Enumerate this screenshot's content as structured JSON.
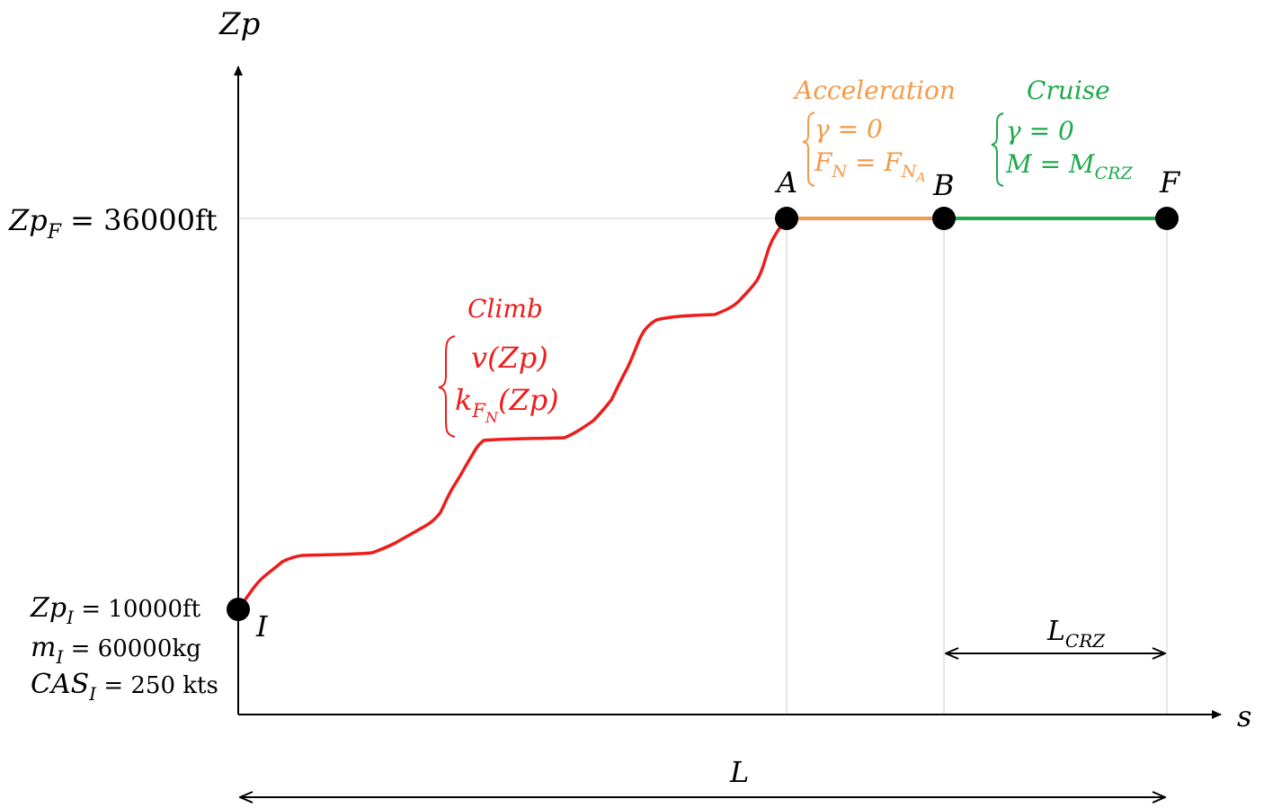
{
  "axes": {
    "y_label": "Zp",
    "x_label": "s"
  },
  "final_altitude": {
    "symbol": "Zp",
    "subscript": "F",
    "value_text": " = 36000ft"
  },
  "initial_conditions": {
    "zp": {
      "symbol": "Zp",
      "subscript": "I",
      "value_text": " = 10000ft"
    },
    "mass": {
      "symbol": "m",
      "subscript": "I",
      "value_text": " = 60000kg"
    },
    "cas": {
      "symbol": "CAS",
      "subscript": "I",
      "value_text": " = 250 kts"
    }
  },
  "points": {
    "I": "I",
    "A": "A",
    "B": "B",
    "F": "F"
  },
  "phases": {
    "climb": {
      "title": "Climb",
      "line1": "v(Zp)",
      "line2_main": "k",
      "line2_sub": "F",
      "line2_subsub": "N",
      "line2_tail": "(Zp)",
      "color": "#ee1c1c"
    },
    "acceleration": {
      "title": "Acceleration",
      "line1": "γ = 0",
      "line2_lhs": "F",
      "line2_lhs_sub": "N",
      "line2_eq": " = F",
      "line2_rhs_sub": "N",
      "line2_rhs_subsub": "A",
      "color": "#f59a4a"
    },
    "cruise": {
      "title": "Cruise",
      "line1": "γ = 0",
      "line2_main": "M = M",
      "line2_sub": "CRZ",
      "color": "#1ea94b"
    }
  },
  "dimensions": {
    "total_length": "L",
    "cruise_length_main": "L",
    "cruise_length_sub": "CRZ"
  }
}
